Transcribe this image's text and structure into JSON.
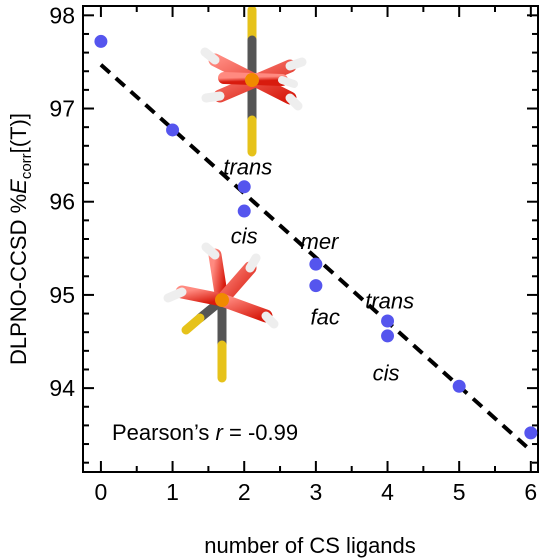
{
  "chart_data": {
    "type": "scatter",
    "title": "",
    "xlabel": "number of CS ligands",
    "ylabel": {
      "prefix": "DLPNO-CCSD %",
      "symbol": "E",
      "subscript": "corr",
      "suffix": "[(T)]"
    },
    "xlim": [
      -0.25,
      6.1
    ],
    "ylim": [
      93.1,
      98.1
    ],
    "xticks": [
      0,
      1,
      2,
      3,
      4,
      5,
      6
    ],
    "yticks": [
      94,
      95,
      96,
      97,
      98
    ],
    "grid": false,
    "marker_color": "#5555ee",
    "points": [
      {
        "x": 0,
        "y": 97.72
      },
      {
        "x": 1,
        "y": 96.77
      },
      {
        "x": 2,
        "y": 96.16
      },
      {
        "x": 2,
        "y": 95.9
      },
      {
        "x": 3,
        "y": 95.33
      },
      {
        "x": 3,
        "y": 95.1
      },
      {
        "x": 4,
        "y": 94.72
      },
      {
        "x": 4,
        "y": 94.56
      },
      {
        "x": 5,
        "y": 94.02
      },
      {
        "x": 6,
        "y": 93.52
      }
    ],
    "fit_line": {
      "x": [
        0,
        6
      ],
      "y": [
        97.47,
        93.33
      ],
      "style": "dashed",
      "color": "#000000"
    },
    "annotations": [
      {
        "text": "trans",
        "x": 2.05,
        "y": 96.38
      },
      {
        "text": "cis",
        "x": 2.0,
        "y": 95.64
      },
      {
        "text": "mer",
        "x": 3.05,
        "y": 95.58
      },
      {
        "text": "fac",
        "x": 3.13,
        "y": 94.77
      },
      {
        "text": "trans",
        "x": 4.03,
        "y": 94.94
      },
      {
        "text": "cis",
        "x": 3.98,
        "y": 94.17
      }
    ],
    "stat_label": {
      "prefix": "Pearson’s ",
      "symbol": "r",
      "suffix": " = -0.99"
    }
  }
}
